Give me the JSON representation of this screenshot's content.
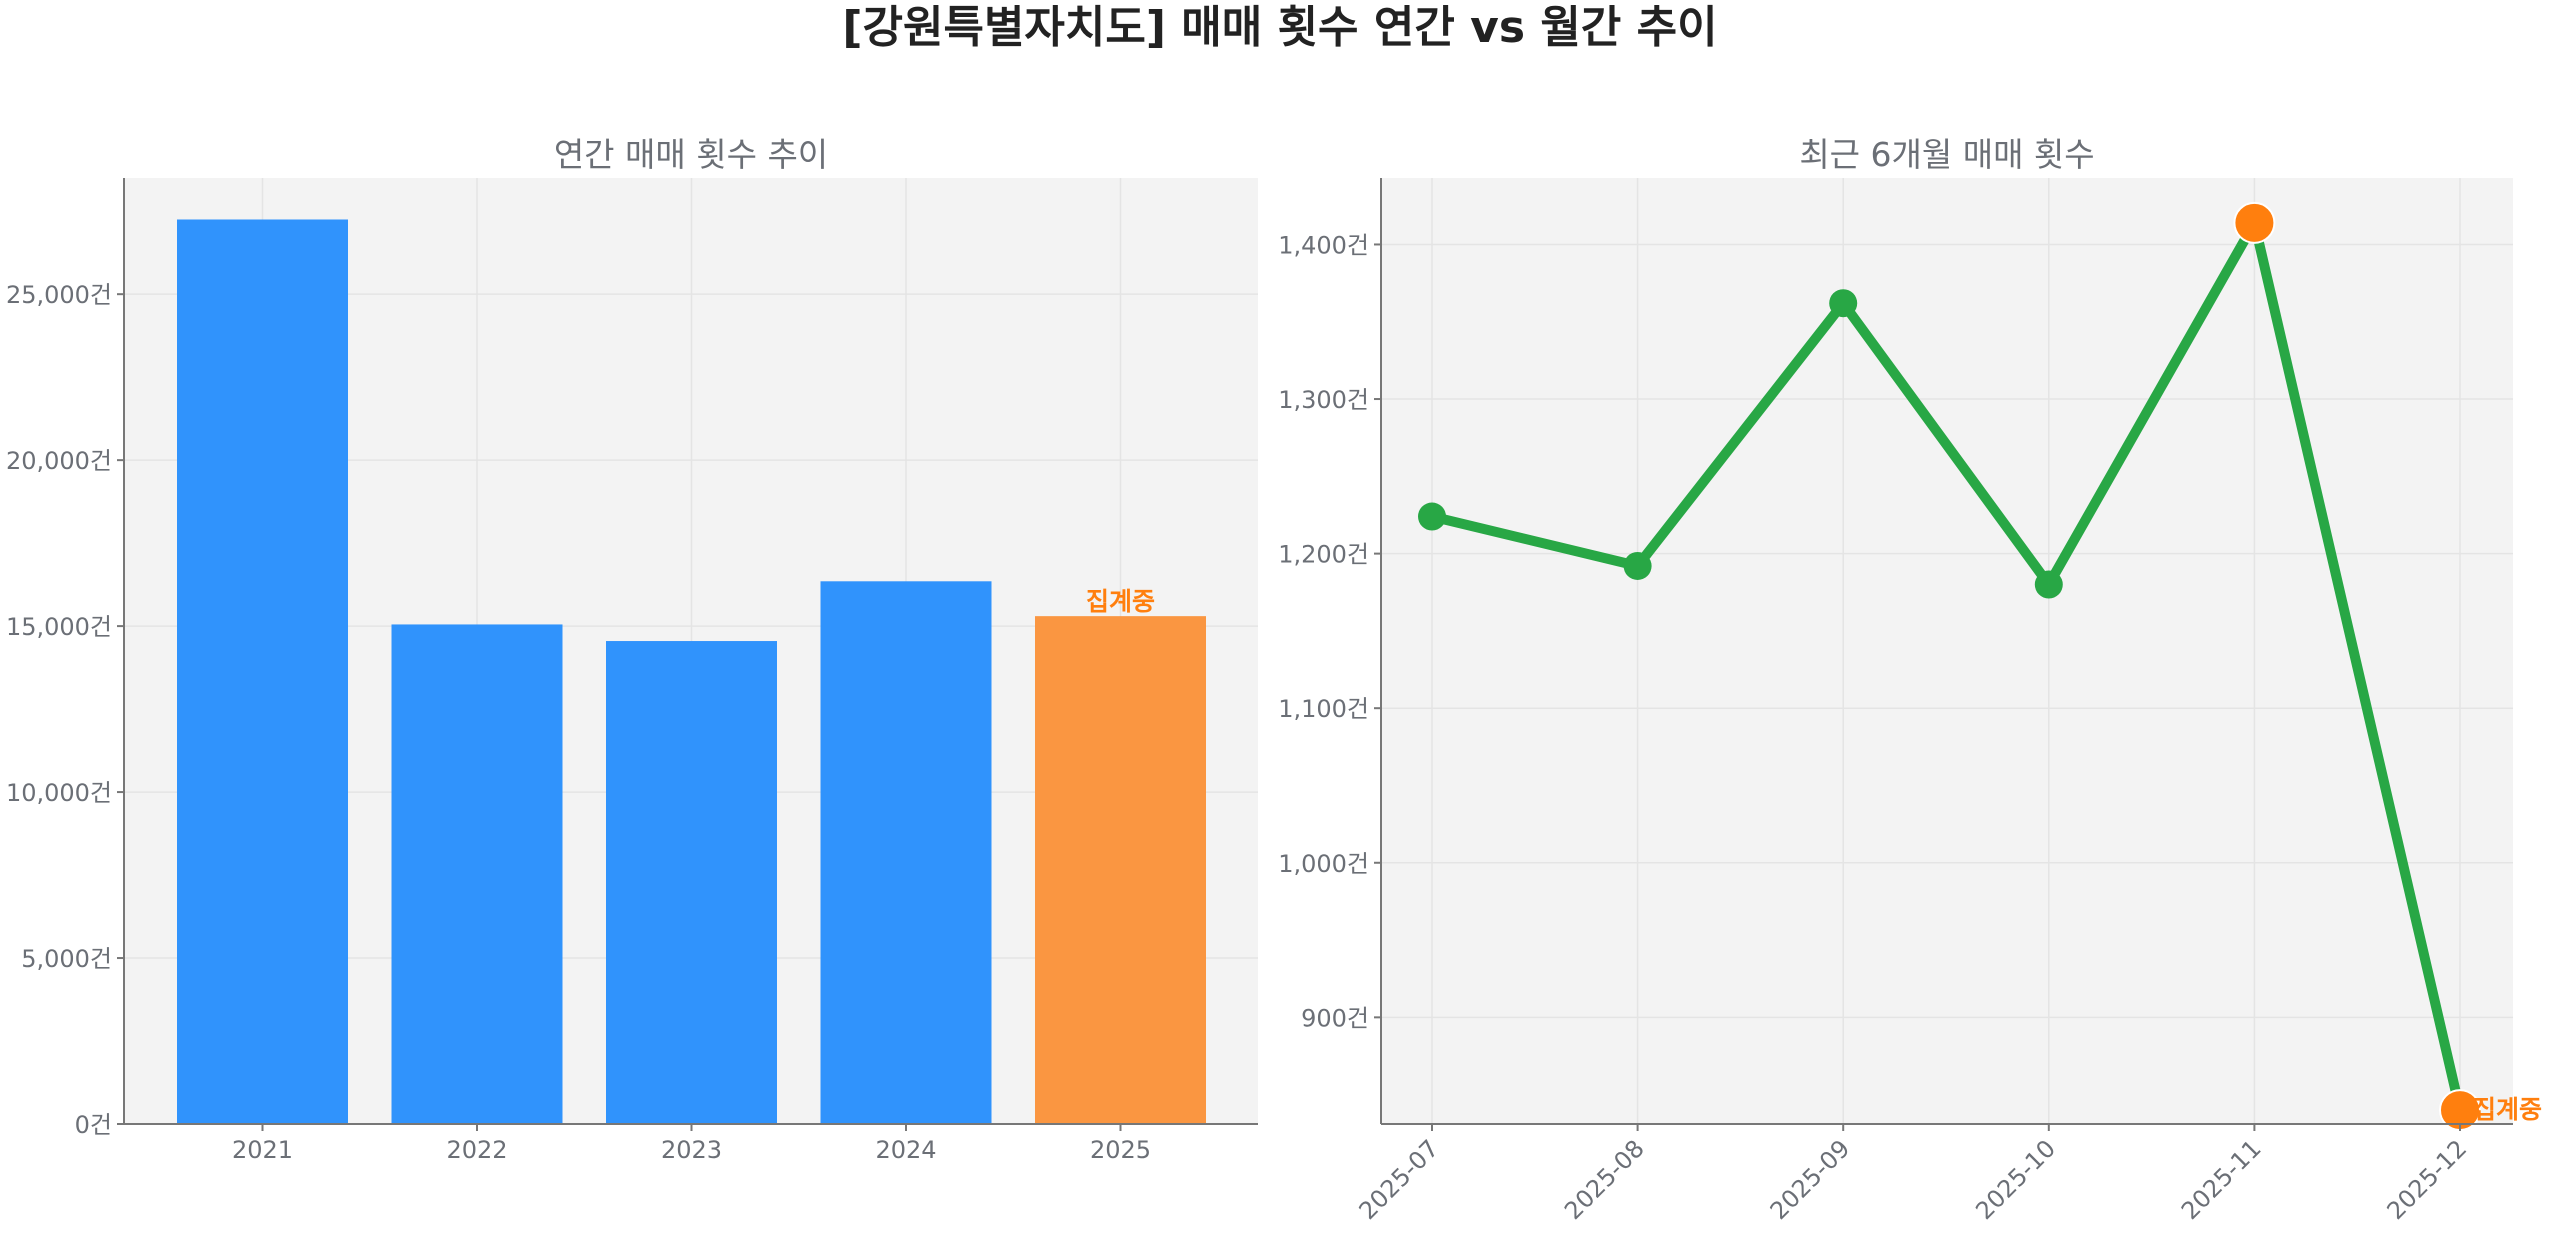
{
  "title": "[강원특별자치도] 매매 횟수 연간 vs 월간 추이",
  "colors": {
    "bar": "#3093fc",
    "bar_highlight": "#fa9641",
    "line": "#28a745",
    "marker": "#28a745",
    "highlight": "#ff7f0e",
    "panel_bg": "#f3f3f3"
  },
  "chart_data": [
    {
      "type": "bar",
      "title": "연간 매매 횟수 추이",
      "categories": [
        "2021",
        "2022",
        "2023",
        "2024",
        "2025"
      ],
      "values": [
        27250,
        15050,
        14550,
        16350,
        15300
      ],
      "ylim": [
        0,
        28500
      ],
      "yticks": [
        0,
        5000,
        10000,
        15000,
        20000,
        25000
      ],
      "ytick_labels": [
        "0건",
        "5,000건",
        "10,000건",
        "15,000건",
        "20,000건",
        "25,000건"
      ],
      "highlight_index": 4,
      "annotation": "집계중",
      "grid": true
    },
    {
      "type": "line",
      "title": "최근 6개월 매매 횟수",
      "categories": [
        "2025-07",
        "2025-08",
        "2025-09",
        "2025-10",
        "2025-11",
        "2025-12"
      ],
      "values": [
        1224,
        1192,
        1362,
        1180,
        1414,
        840
      ],
      "ylim": [
        831,
        1443
      ],
      "yticks": [
        900,
        1000,
        1100,
        1200,
        1300,
        1400
      ],
      "ytick_labels": [
        "900건",
        "1,000건",
        "1,100건",
        "1,200건",
        "1,300건",
        "1,400건"
      ],
      "highlight_indices": [
        4,
        5
      ],
      "annotation": "집계중",
      "annotation_index": 5,
      "grid": true
    }
  ]
}
